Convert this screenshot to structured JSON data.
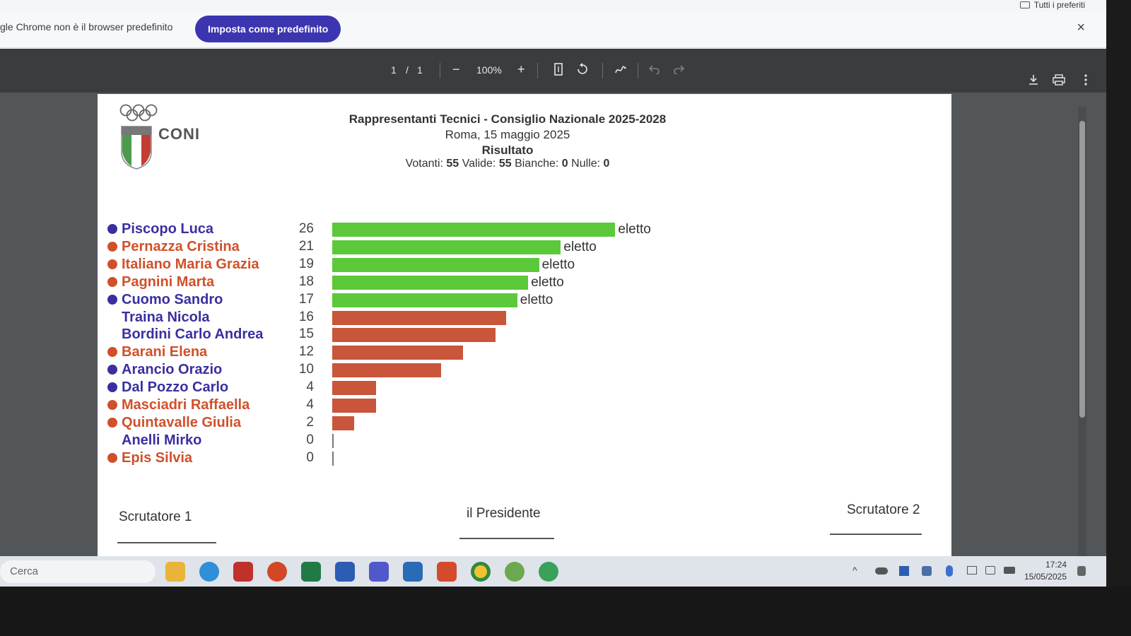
{
  "browser": {
    "bookmarks_right": "Tutti i preferiti",
    "infobar_message": "gle Chrome non è il browser predefinito",
    "infobar_button": "Imposta come predefinito",
    "close_symbol": "×"
  },
  "pdf_toolbar": {
    "page_current": "1",
    "page_sep": "/",
    "page_total": "1",
    "zoom_out": "−",
    "zoom": "100%",
    "zoom_in": "+"
  },
  "document": {
    "logo_text": "CONI",
    "title": "Rappresentanti Tecnici - Consiglio Nazionale 2025-2028",
    "place_date": "Roma, 15 maggio 2025",
    "heading": "Risultato",
    "stats": {
      "votanti_label": "Votanti:",
      "votanti": "55",
      "valide_label": "Valide:",
      "valide": "55",
      "bianche_label": "Bianche:",
      "bianche": "0",
      "nulle_label": "Nulle:",
      "nulle": "0"
    },
    "signatures": {
      "left": "Scrutatore 1",
      "center": "il Presidente",
      "right": "Scrutatore 2"
    }
  },
  "chart_data": {
    "type": "bar",
    "orientation": "horizontal",
    "categories": [
      "Piscopo Luca",
      "Pernazza Cristina",
      "Italiano Maria Grazia",
      "Pagnini Marta",
      "Cuomo Sandro",
      "Traina Nicola",
      "Bordini Carlo Andrea",
      "Barani Elena",
      "Arancio Orazio",
      "Dal Pozzo Carlo",
      "Masciadri Raffaella",
      "Quintavalle Giulia",
      "Anelli Mirko",
      "Epis Silvia"
    ],
    "values": [
      26,
      21,
      19,
      18,
      17,
      16,
      15,
      12,
      10,
      4,
      4,
      2,
      0,
      0
    ],
    "elected": [
      true,
      true,
      true,
      true,
      true,
      false,
      false,
      false,
      false,
      false,
      false,
      false,
      false,
      false
    ],
    "elected_label": "eletto",
    "name_color": [
      "#3a2fa0",
      "#d0502a",
      "#d0502a",
      "#d0502a",
      "#3a2fa0",
      "#3a2fa0",
      "#3a2fa0",
      "#d0502a",
      "#3a2fa0",
      "#3a2fa0",
      "#d0502a",
      "#d0502a",
      "#3a2fa0",
      "#d0502a"
    ],
    "has_dot": [
      true,
      true,
      true,
      true,
      true,
      false,
      false,
      true,
      true,
      true,
      true,
      true,
      false,
      true
    ],
    "colors": {
      "elected": "#5cc93a",
      "not_elected": "#c9553a"
    }
  },
  "taskbar": {
    "search_placeholder": "Cerca",
    "time": "17:24",
    "date": "15/05/2025"
  }
}
